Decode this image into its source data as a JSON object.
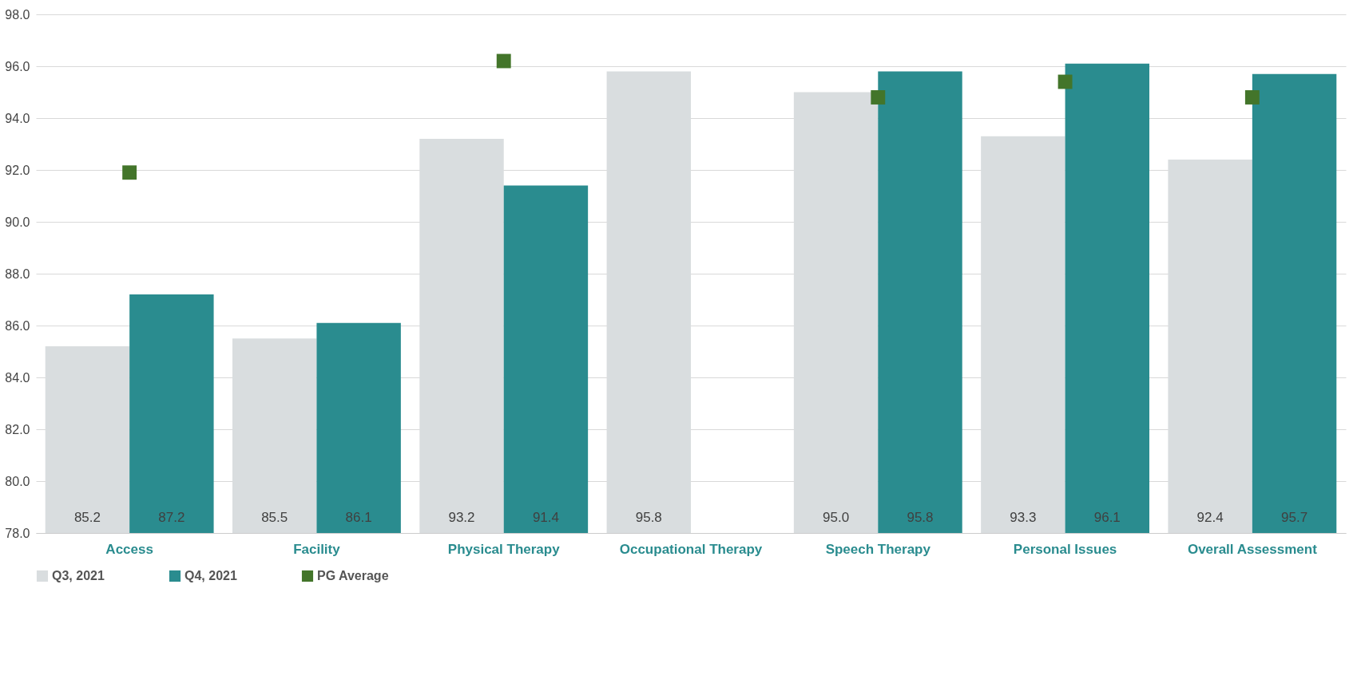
{
  "chart_data": {
    "type": "bar",
    "categories": [
      "Access",
      "Facility",
      "Physical Therapy",
      "Occupational Therapy",
      "Speech Therapy",
      "Personal Issues",
      "Overall Assessment"
    ],
    "series": [
      {
        "name": "Q3, 2021",
        "color": "#d9dddf",
        "values": [
          85.2,
          85.5,
          93.2,
          95.8,
          95.0,
          93.3,
          92.4
        ],
        "value_labels": [
          "85.2",
          "85.5",
          "93.2",
          "95.8",
          "95.0",
          "93.3",
          "92.4"
        ]
      },
      {
        "name": "Q4, 2021",
        "color": "#2a8c8f",
        "values": [
          87.2,
          86.1,
          91.4,
          null,
          95.8,
          96.1,
          95.7
        ],
        "value_labels": [
          "87.2",
          "86.1",
          "91.4",
          null,
          "95.8",
          "96.1",
          "95.7"
        ]
      },
      {
        "name": "PG Average",
        "type": "scatter",
        "color": "#43752a",
        "values": [
          91.9,
          null,
          96.2,
          null,
          94.8,
          95.4,
          94.8
        ]
      }
    ],
    "ylim": [
      78,
      98
    ],
    "yticks": [
      {
        "value": 78,
        "label": "78.0"
      },
      {
        "value": 80,
        "label": "80.0"
      },
      {
        "value": 82,
        "label": "82.0"
      },
      {
        "value": 84,
        "label": "84.0"
      },
      {
        "value": 86,
        "label": "86.0"
      },
      {
        "value": 88,
        "label": "88.0"
      },
      {
        "value": 90,
        "label": "90.0"
      },
      {
        "value": 92,
        "label": "92.0"
      },
      {
        "value": 94,
        "label": "94.0"
      },
      {
        "value": 96,
        "label": "96.0"
      },
      {
        "value": 98,
        "label": "98.0"
      }
    ],
    "grid": "y",
    "legend": "bottom",
    "marker": "square"
  }
}
